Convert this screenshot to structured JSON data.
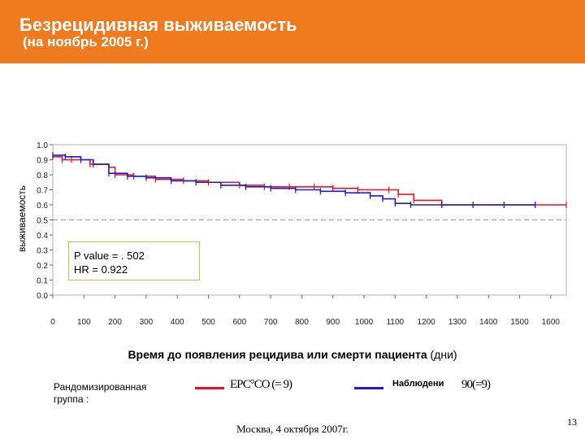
{
  "slide": {
    "title": "Безрецидивная выживаемость",
    "subtitle": "(на ноябрь 2005 г.)",
    "footer": "Москва, 4 октября 2007г.",
    "page_number": "13"
  },
  "stats": {
    "p_value": "P value = . 502",
    "hr": "HR = 0.922"
  },
  "legend": {
    "group_label": "Рандомизированная группа :",
    "series1_label": "ЕРС°СО (= 9)",
    "series2_marker": "Наблюдени",
    "series2_label": "90(=9)"
  },
  "colors": {
    "header": "#f07a1e",
    "series1": "#e8141e",
    "series2": "#1a1adc",
    "statbox_border": "#f2b042"
  },
  "chart_data": {
    "type": "line",
    "title": "",
    "xlabel_bold": "Время до появления рецидива или смерти пациента",
    "xlabel_unit": "(дни)",
    "ylabel": "выживаемость",
    "xlim": [
      0,
      1650
    ],
    "ylim": [
      0,
      1.0
    ],
    "x_ticks": [
      "0",
      "100",
      "200",
      "300",
      "400",
      "500",
      "600",
      "700",
      "800",
      "900",
      "1000",
      "1100",
      "1200",
      "1300",
      "1400",
      "1500",
      "1600"
    ],
    "y_ticks": [
      "0.0",
      "0.1",
      "0.2",
      "0.3",
      "0.4",
      "0.5",
      "0.6",
      "0.7",
      "0.8",
      "0.9",
      "1.0"
    ],
    "reference_line_y": 0.5,
    "grid": false,
    "series": [
      {
        "name": "ЕРС°СО",
        "color": "#e8141e",
        "points": [
          [
            0,
            0.92
          ],
          [
            30,
            0.9
          ],
          [
            60,
            0.9
          ],
          [
            120,
            0.87
          ],
          [
            180,
            0.85
          ],
          [
            200,
            0.8
          ],
          [
            260,
            0.79
          ],
          [
            330,
            0.77
          ],
          [
            420,
            0.76
          ],
          [
            500,
            0.75
          ],
          [
            600,
            0.73
          ],
          [
            680,
            0.72
          ],
          [
            760,
            0.72
          ],
          [
            840,
            0.72
          ],
          [
            900,
            0.71
          ],
          [
            980,
            0.7
          ],
          [
            1080,
            0.7
          ],
          [
            1110,
            0.67
          ],
          [
            1160,
            0.63
          ],
          [
            1250,
            0.6
          ],
          [
            1350,
            0.6
          ],
          [
            1450,
            0.6
          ],
          [
            1550,
            0.6
          ],
          [
            1650,
            0.6
          ]
        ]
      },
      {
        "name": "Наблюдени",
        "color": "#1a1adc",
        "points": [
          [
            0,
            0.93
          ],
          [
            40,
            0.92
          ],
          [
            90,
            0.9
          ],
          [
            130,
            0.87
          ],
          [
            180,
            0.81
          ],
          [
            240,
            0.79
          ],
          [
            300,
            0.78
          ],
          [
            380,
            0.76
          ],
          [
            460,
            0.75
          ],
          [
            540,
            0.73
          ],
          [
            620,
            0.72
          ],
          [
            700,
            0.71
          ],
          [
            780,
            0.7
          ],
          [
            860,
            0.69
          ],
          [
            940,
            0.68
          ],
          [
            1020,
            0.66
          ],
          [
            1060,
            0.64
          ],
          [
            1100,
            0.61
          ],
          [
            1150,
            0.6
          ],
          [
            1250,
            0.6
          ],
          [
            1350,
            0.6
          ],
          [
            1450,
            0.6
          ],
          [
            1550,
            0.6
          ]
        ]
      }
    ]
  }
}
